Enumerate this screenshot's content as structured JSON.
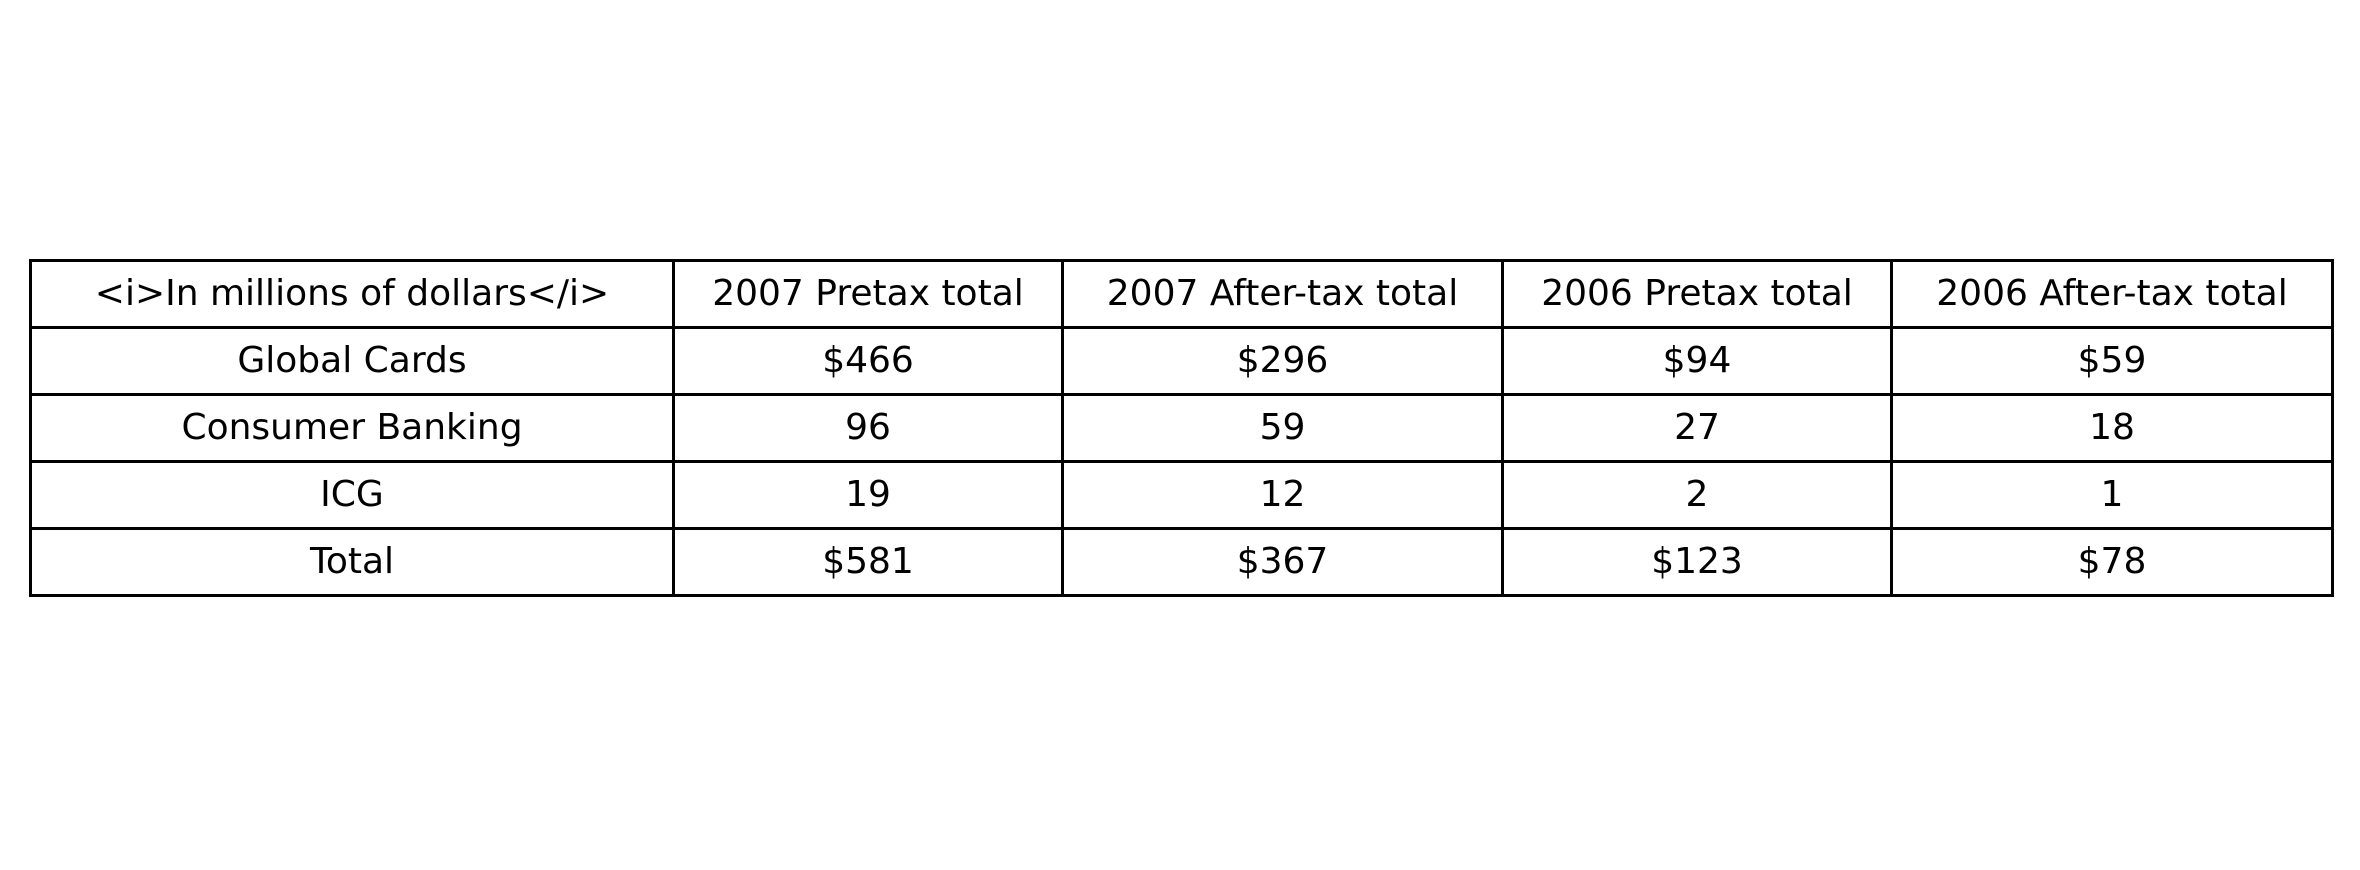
{
  "chart_data": {
    "type": "table",
    "columns": [
      "<i>In millions of dollars</i>",
      "2007 Pretax total",
      "2007 After-tax total",
      "2006 Pretax total",
      "2006 After-tax total"
    ],
    "rows": [
      [
        "Global Cards",
        "$466",
        "$296",
        "$94",
        "$59"
      ],
      [
        "Consumer Banking",
        "96",
        "59",
        "27",
        "18"
      ],
      [
        "ICG",
        "19",
        "12",
        "2",
        "1"
      ],
      [
        "Total",
        "$581",
        "$367",
        "$123",
        "$78"
      ]
    ],
    "grid": true,
    "colors": {
      "border": "#000000",
      "background": "#ffffff",
      "text": "#000000"
    }
  }
}
